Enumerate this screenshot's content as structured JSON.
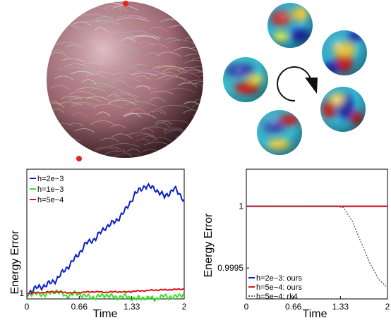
{
  "figure": {
    "sphere_markers_color": "#e8201e",
    "rotation_arrow_icon": "clockwise-arrow-icon",
    "colormap": "jet"
  },
  "chart_data": [
    {
      "type": "line",
      "xlabel": "Time",
      "ylabel": "Energy Error",
      "xlim": [
        0,
        2
      ],
      "ylim": [
        0.98,
        1.45
      ],
      "x_ticks": [
        "0",
        "0.66",
        "1.33",
        "2"
      ],
      "y_ticks": [
        "1"
      ],
      "legend_position": "top-left",
      "x": [
        0,
        0.125,
        0.25,
        0.375,
        0.5,
        0.625,
        0.75,
        0.875,
        1.0,
        1.125,
        1.25,
        1.375,
        1.5,
        1.625,
        1.75,
        1.875,
        2.0
      ],
      "series": [
        {
          "name": "h=2e−3",
          "color": "#0a1ec8",
          "dash": "",
          "values": [
            1.0,
            1.02,
            1.03,
            1.05,
            1.09,
            1.13,
            1.18,
            1.2,
            1.24,
            1.26,
            1.3,
            1.36,
            1.39,
            1.38,
            1.35,
            1.38,
            1.34
          ]
        },
        {
          "name": "h=1e−3",
          "color": "#38e12a",
          "dash": "",
          "values": [
            1.0,
            0.998,
            0.996,
            1.01,
            0.99,
            1.0,
            0.99,
            0.985,
            0.995,
            0.985,
            0.99,
            0.98,
            0.985,
            0.98,
            0.99,
            0.985,
            1.0
          ]
        },
        {
          "name": "h=5e−4",
          "color": "#e21212",
          "dash": "",
          "values": [
            1.0,
            1.002,
            1.004,
            1.006,
            1.003,
            1.002,
            1.005,
            1.006,
            1.004,
            1.006,
            1.005,
            1.008,
            1.01,
            1.012,
            1.013,
            1.014,
            1.016
          ]
        }
      ]
    },
    {
      "type": "line",
      "xlabel": "Time",
      "ylabel": "Energy Error",
      "xlim": [
        0,
        2
      ],
      "ylim": [
        0.99925,
        1.0003
      ],
      "x_ticks": [
        "0",
        "0.66",
        "1.33",
        "2"
      ],
      "y_ticks": [
        "1",
        "0.9995"
      ],
      "y_tick_values": [
        1,
        0.9995
      ],
      "legend_position": "bottom-left",
      "x": [
        0,
        0.125,
        0.25,
        0.375,
        0.5,
        0.625,
        0.75,
        0.875,
        1.0,
        1.125,
        1.25,
        1.375,
        1.5,
        1.625,
        1.75,
        1.875,
        2.0
      ],
      "series": [
        {
          "name": "h=2e−3: ours",
          "color": "#0a1ec8",
          "dash": "",
          "values": [
            1,
            1,
            1,
            1,
            1,
            1,
            1,
            1,
            1,
            1,
            1,
            1,
            1,
            1,
            1,
            1,
            1
          ]
        },
        {
          "name": "h=5e−4: ours",
          "color": "#e21212",
          "dash": "",
          "values": [
            1,
            1,
            1,
            1,
            1,
            1,
            1,
            1,
            1,
            1,
            1,
            1,
            1,
            1,
            1,
            1,
            1
          ]
        },
        {
          "name": "h=5e−4: rk4",
          "color": "#555555",
          "dash": "2,2",
          "values": [
            1,
            1,
            1,
            1,
            1,
            1,
            1,
            1,
            1,
            1,
            1,
            0.99999,
            0.99988,
            0.99971,
            0.99954,
            0.99941,
            0.99934
          ]
        }
      ]
    }
  ]
}
